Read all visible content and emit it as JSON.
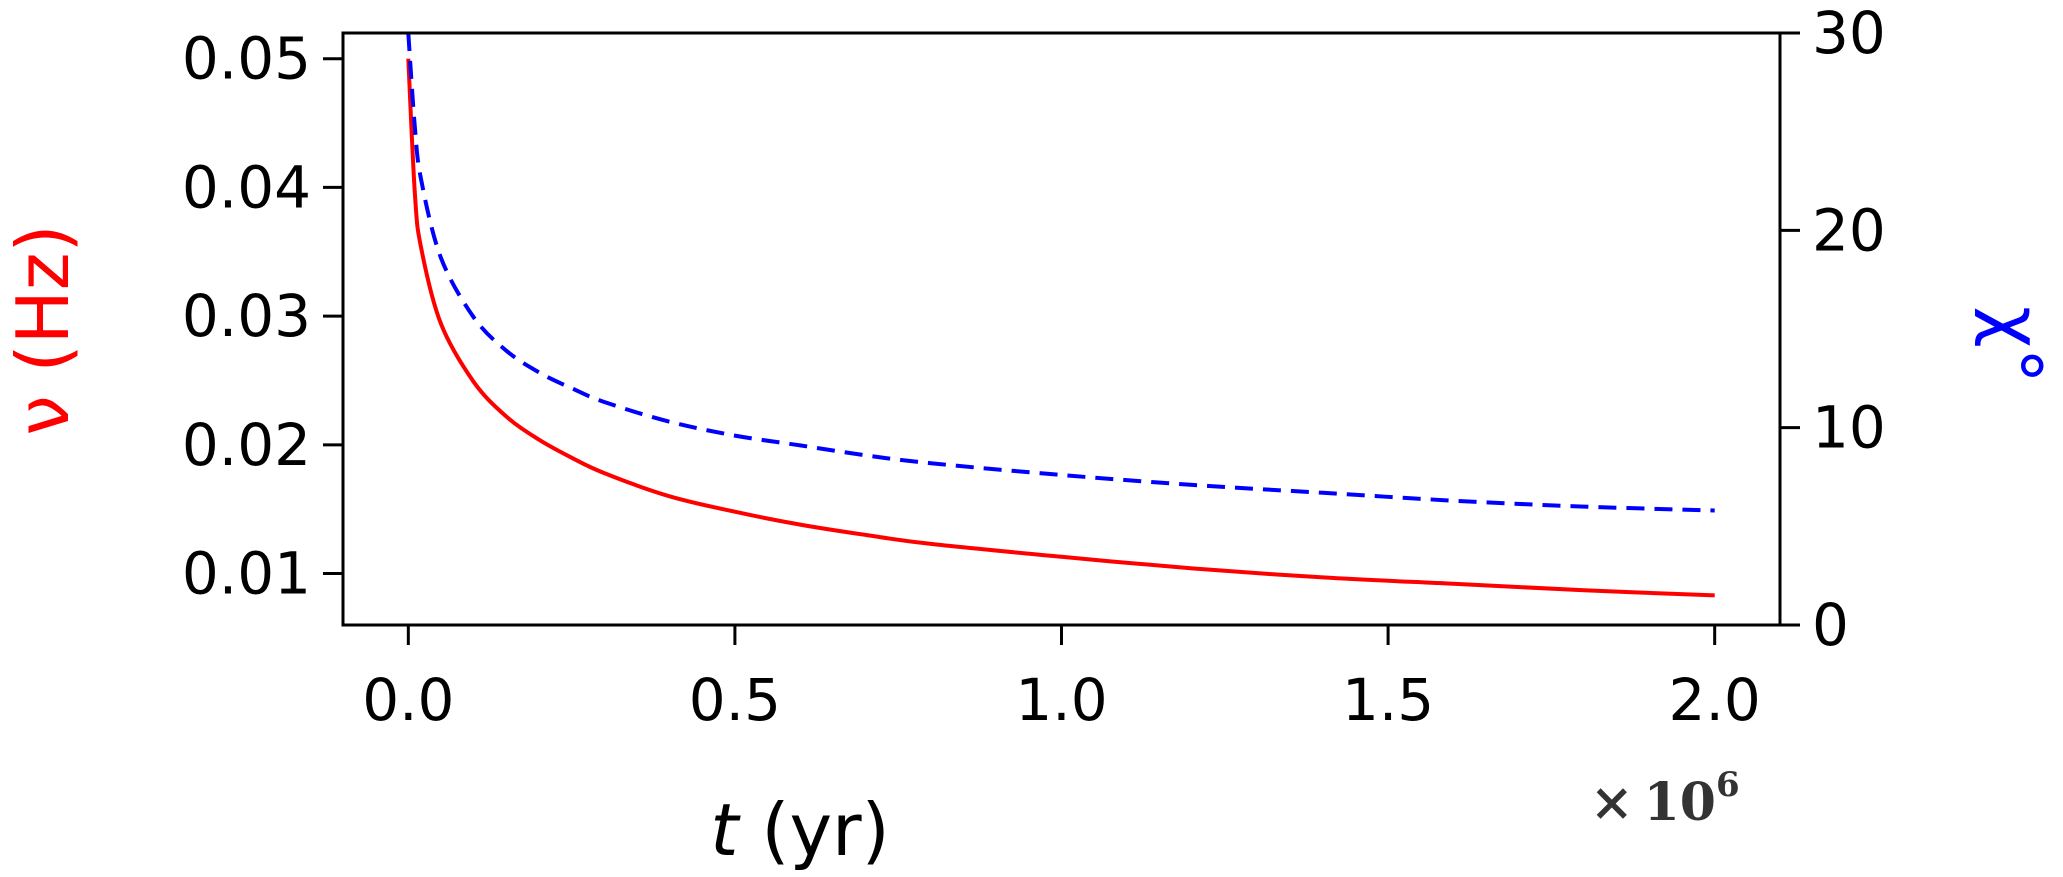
{
  "chart_data": {
    "type": "line",
    "title": "",
    "xlabel_var": "t",
    "xlabel_unit": " (yr)",
    "x_multiplier_sign": "×",
    "x_multiplier_base": "10",
    "x_multiplier_exp": "6",
    "xlim": [
      -0.1,
      2.1
    ],
    "x_ticks": [
      0.0,
      0.5,
      1.0,
      1.5,
      2.0
    ],
    "x_tick_labels": [
      "0.0",
      "0.5",
      "1.0",
      "1.5",
      "2.0"
    ],
    "ylabel_left": "ν (Hz)",
    "ylim_left": [
      0.006,
      0.052
    ],
    "y_left_ticks": [
      0.01,
      0.02,
      0.03,
      0.04,
      0.05
    ],
    "y_left_tick_labels": [
      "0.01",
      "0.02",
      "0.03",
      "0.04",
      "0.05"
    ],
    "ylabel_right": "χ°",
    "ylim_right": [
      0,
      30
    ],
    "y_right_ticks": [
      0,
      10,
      20,
      30
    ],
    "y_right_tick_labels": [
      "0",
      "10",
      "20",
      "30"
    ],
    "grid": false,
    "legend": "none",
    "colors": {
      "nu": "#ff0000",
      "chi": "#0000ff",
      "axes": "#000000",
      "label_nu": "#ff0000",
      "label_chi": "#0000ff"
    },
    "series": [
      {
        "axis": "left",
        "color": "#ff0000",
        "style": "solid",
        "x": [
          0.0,
          0.01,
          0.02,
          0.05,
          0.1,
          0.15,
          0.2,
          0.25,
          0.3,
          0.4,
          0.5,
          0.6,
          0.7,
          0.8,
          1.0,
          1.2,
          1.4,
          1.6,
          1.8,
          2.0
        ],
        "values": [
          0.05,
          0.0395,
          0.0352,
          0.0294,
          0.0249,
          0.0222,
          0.0204,
          0.019,
          0.0178,
          0.016,
          0.0148,
          0.0138,
          0.013,
          0.0123,
          0.0113,
          0.0104,
          0.0097,
          0.0092,
          0.0087,
          0.0083
        ]
      },
      {
        "axis": "right",
        "color": "#0000ff",
        "style": "dashed",
        "x": [
          0.0,
          0.01,
          0.02,
          0.05,
          0.1,
          0.15,
          0.2,
          0.25,
          0.3,
          0.4,
          0.5,
          0.6,
          0.7,
          0.8,
          1.0,
          1.2,
          1.4,
          1.6,
          1.8,
          2.0
        ],
        "values": [
          30.0,
          25.2,
          22.5,
          18.6,
          15.6,
          13.9,
          12.8,
          12.0,
          11.3,
          10.3,
          9.6,
          9.1,
          8.6,
          8.2,
          7.6,
          7.1,
          6.7,
          6.3,
          6.0,
          5.8
        ]
      }
    ]
  }
}
